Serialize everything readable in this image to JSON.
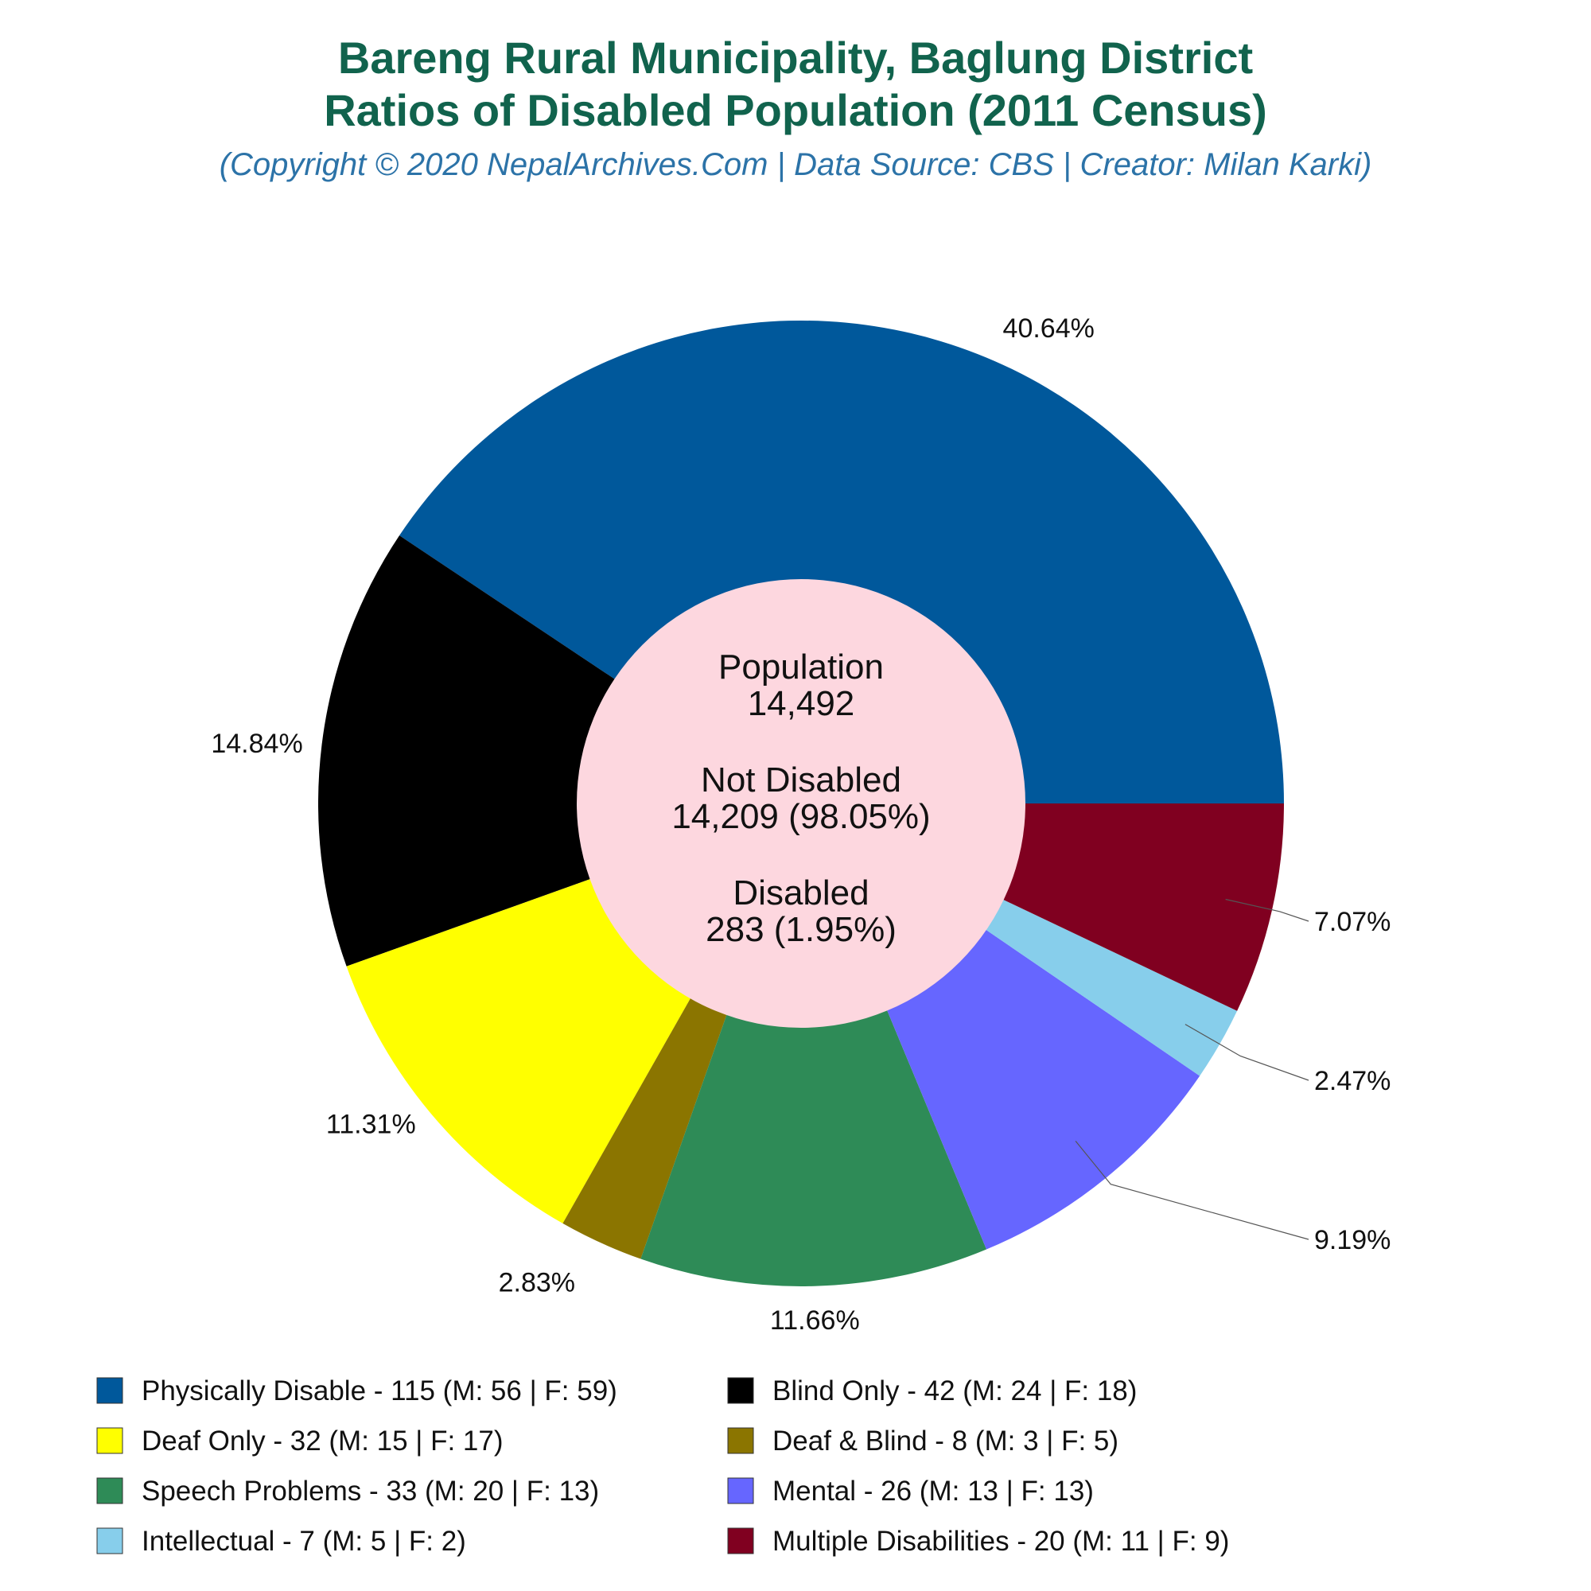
{
  "chart_data": {
    "type": "pie",
    "title_lines": [
      "Bareng Rural Municipality, Baglung District",
      "Ratios of Disabled Population (2011 Census)"
    ],
    "subtitle": "(Copyright © 2020 NepalArchives.Com | Data Source: CBS | Creator: Milan Karki)",
    "center": {
      "population_label": "Population",
      "population_value": "14,492",
      "not_disabled_label": "Not Disabled",
      "not_disabled_value": "14,209 (98.05%)",
      "disabled_label": "Disabled",
      "disabled_value": "283 (1.95%)"
    },
    "slices": [
      {
        "name": "Physically Disable",
        "value": 115,
        "male": 56,
        "female": 59,
        "percent_label": "40.64%",
        "color": "#00589b",
        "legend": "Physically Disable - 115 (M: 56 | F: 59)"
      },
      {
        "name": "Blind Only",
        "value": 42,
        "male": 24,
        "female": 18,
        "percent_label": "14.84%",
        "color": "#000000",
        "legend": "Blind Only - 42 (M: 24 | F: 18)"
      },
      {
        "name": "Deaf Only",
        "value": 32,
        "male": 15,
        "female": 17,
        "percent_label": "11.31%",
        "color": "#ffff00",
        "legend": "Deaf Only - 32 (M: 15 | F: 17)"
      },
      {
        "name": "Deaf & Blind",
        "value": 8,
        "male": 3,
        "female": 5,
        "percent_label": "2.83%",
        "color": "#8b7500",
        "legend": "Deaf & Blind - 8 (M: 3 | F: 5)"
      },
      {
        "name": "Speech Problems",
        "value": 33,
        "male": 20,
        "female": 13,
        "percent_label": "11.66%",
        "color": "#2e8b57",
        "legend": "Speech Problems - 33 (M: 20 | F: 13)"
      },
      {
        "name": "Mental",
        "value": 26,
        "male": 13,
        "female": 13,
        "percent_label": "9.19%",
        "color": "#6666ff",
        "legend": "Mental - 26 (M: 13 | F: 13)"
      },
      {
        "name": "Intellectual",
        "value": 7,
        "male": 5,
        "female": 2,
        "percent_label": "2.47%",
        "color": "#87ceeb",
        "legend": "Intellectual - 7 (M: 5 | F: 2)"
      },
      {
        "name": "Multiple Disabilities",
        "value": 20,
        "male": 11,
        "female": 9,
        "percent_label": "7.07%",
        "color": "#800020",
        "legend": "Multiple Disabilities - 20 (M: 11 | F: 9)"
      }
    ],
    "hole_color": "#fdd7df",
    "legend_placement": "bottom",
    "legend_columns": 2
  }
}
